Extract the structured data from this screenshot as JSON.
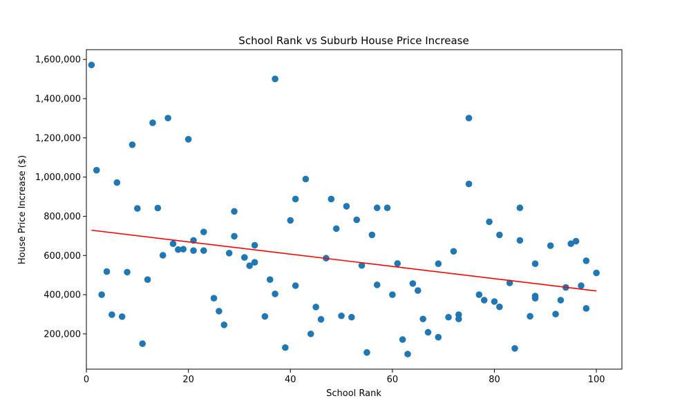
{
  "chart_data": {
    "type": "scatter",
    "title": "School Rank vs Suburb House Price Increase",
    "xlabel": "School Rank",
    "ylabel": "House Price Increase ($)",
    "xlim": [
      0,
      105
    ],
    "ylim": [
      20000,
      1650000
    ],
    "x_ticks": [
      0,
      20,
      40,
      60,
      80,
      100
    ],
    "x_tick_labels": [
      "0",
      "20",
      "40",
      "60",
      "80",
      "100"
    ],
    "y_ticks": [
      200000,
      400000,
      600000,
      800000,
      1000000,
      1200000,
      1400000,
      1600000
    ],
    "y_tick_labels": [
      "200,000",
      "400,000",
      "600,000",
      "800,000",
      "1,000,000",
      "1,200,000",
      "1,400,000",
      "1,600,000"
    ],
    "grid": false,
    "colors": {
      "points": "#1f77b4",
      "trend": "#ff0000"
    },
    "series": [
      {
        "points": [
          [
            1,
            1572000
          ],
          [
            2,
            1035000
          ],
          [
            3,
            400000
          ],
          [
            4,
            518000
          ],
          [
            5,
            298000
          ],
          [
            6,
            972000
          ],
          [
            7,
            288000
          ],
          [
            8,
            515000
          ],
          [
            9,
            1165000
          ],
          [
            10,
            840000
          ],
          [
            11,
            150000
          ],
          [
            12,
            477000
          ],
          [
            13,
            1277000
          ],
          [
            14,
            842000
          ],
          [
            15,
            601000
          ],
          [
            16,
            1301000
          ],
          [
            17,
            660000
          ],
          [
            18,
            630000
          ],
          [
            19,
            632000
          ],
          [
            20,
            1193000
          ],
          [
            21,
            677000
          ],
          [
            21,
            625000
          ],
          [
            23,
            720000
          ],
          [
            23,
            625000
          ],
          [
            25,
            382000
          ],
          [
            26,
            316000
          ],
          [
            27,
            246000
          ],
          [
            28,
            612000
          ],
          [
            29,
            825000
          ],
          [
            29,
            698000
          ],
          [
            31,
            590000
          ],
          [
            32,
            548000
          ],
          [
            33,
            652000
          ],
          [
            33,
            565000
          ],
          [
            35,
            289000
          ],
          [
            36,
            477000
          ],
          [
            37,
            1501000
          ],
          [
            37,
            404000
          ],
          [
            39,
            130000
          ],
          [
            40,
            779000
          ],
          [
            41,
            888000
          ],
          [
            41,
            446000
          ],
          [
            43,
            990000
          ],
          [
            44,
            200000
          ],
          [
            45,
            337000
          ],
          [
            46,
            274000
          ],
          [
            47,
            586000
          ],
          [
            48,
            888000
          ],
          [
            49,
            737000
          ],
          [
            50,
            292000
          ],
          [
            51,
            851000
          ],
          [
            52,
            285000
          ],
          [
            53,
            782000
          ],
          [
            54,
            549000
          ],
          [
            55,
            105000
          ],
          [
            56,
            705000
          ],
          [
            57,
            843000
          ],
          [
            57,
            450000
          ],
          [
            59,
            843000
          ],
          [
            60,
            400000
          ],
          [
            61,
            559000
          ],
          [
            62,
            171000
          ],
          [
            63,
            97000
          ],
          [
            64,
            457000
          ],
          [
            65,
            421000
          ],
          [
            66,
            276000
          ],
          [
            67,
            208000
          ],
          [
            69,
            558000
          ],
          [
            69,
            183000
          ],
          [
            71,
            285000
          ],
          [
            72,
            621000
          ],
          [
            73,
            298000
          ],
          [
            73,
            276000
          ],
          [
            75,
            1301000
          ],
          [
            75,
            965000
          ],
          [
            77,
            400000
          ],
          [
            78,
            372000
          ],
          [
            79,
            772000
          ],
          [
            80,
            365000
          ],
          [
            81,
            705000
          ],
          [
            81,
            338000
          ],
          [
            83,
            460000
          ],
          [
            84,
            126000
          ],
          [
            85,
            843000
          ],
          [
            85,
            677000
          ],
          [
            87,
            290000
          ],
          [
            88,
            558000
          ],
          [
            88,
            393000
          ],
          [
            88,
            382000
          ],
          [
            91,
            650000
          ],
          [
            92,
            301000
          ],
          [
            93,
            372000
          ],
          [
            94,
            437000
          ],
          [
            95,
            660000
          ],
          [
            96,
            673000
          ],
          [
            97,
            446000
          ],
          [
            98,
            573000
          ],
          [
            98,
            330000
          ],
          [
            100,
            511000
          ]
        ]
      }
    ],
    "trend_line": {
      "x": [
        1,
        100
      ],
      "y": [
        729000,
        419000
      ]
    }
  }
}
